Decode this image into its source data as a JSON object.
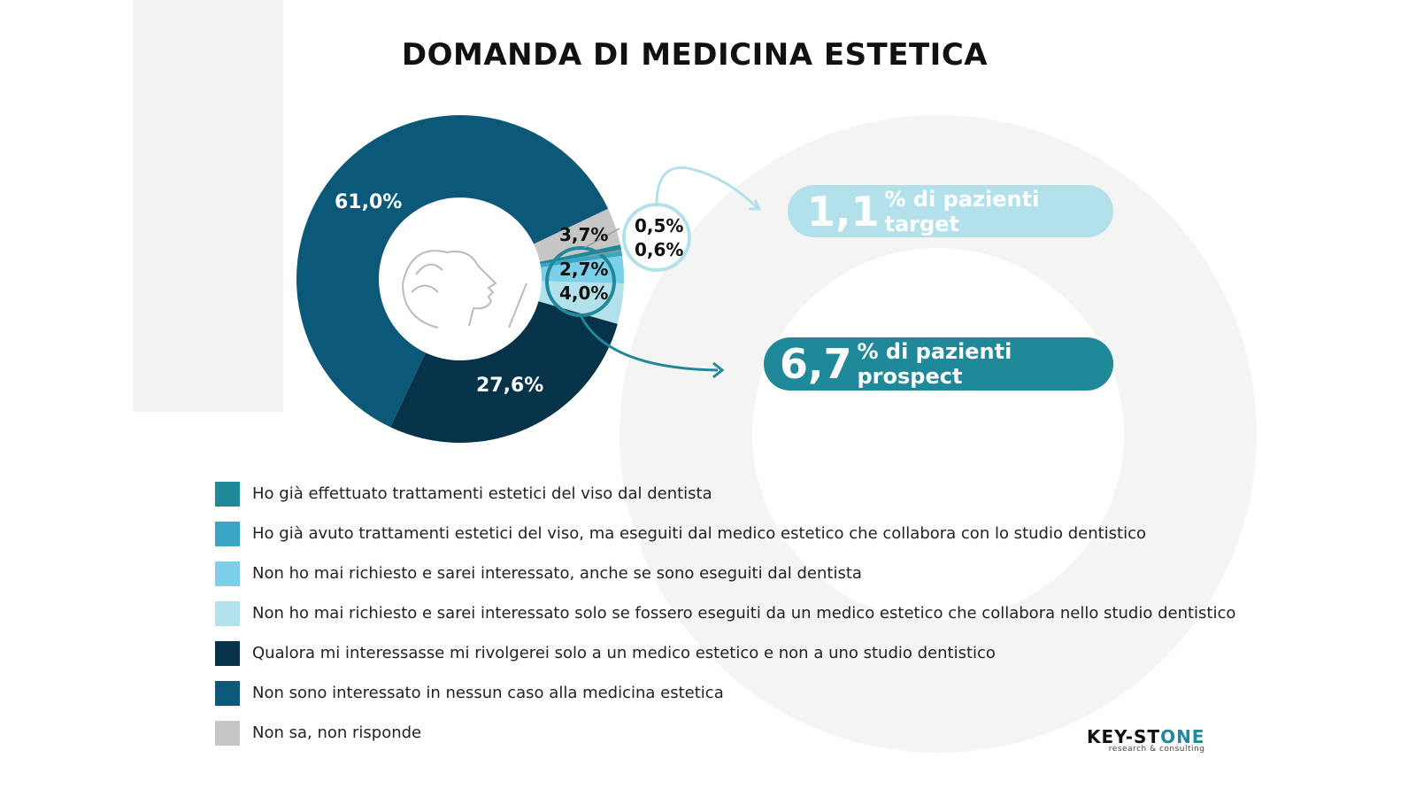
{
  "chart_data": {
    "type": "pie",
    "title": "DOMANDA DI MEDICINA ESTETICA",
    "slices": [
      {
        "label": "Non sa, non risponde",
        "value": 3.7,
        "display": "3,7%",
        "color": "#c6c6c6"
      },
      {
        "label": "Ho già effettuato trattamenti estetici del viso dal dentista",
        "value": 0.5,
        "display": "0,5%",
        "color": "#1f8899"
      },
      {
        "label": "Ho già avuto trattamenti estetici del viso, ma eseguiti dal medico estetico che collabora con lo studio dentistico",
        "value": 0.6,
        "display": "0,6%",
        "color": "#3aa6c6"
      },
      {
        "label": "Non ho mai richiesto e sarei interessato, anche se sono eseguiti dal dentista",
        "value": 2.7,
        "display": "2,7%",
        "color": "#7ccfe9"
      },
      {
        "label": "Non ho mai richiesto e sarei interessato solo se fossero eseguiti da un medico estetico che collabora nello studio dentistico",
        "value": 4.0,
        "display": "4,0%",
        "color": "#b3e1eb"
      },
      {
        "label": "Qualora mi interessasse mi rivolgerei solo a un medico estetico e non a uno studio dentistico",
        "value": 27.6,
        "display": "27,6%",
        "color": "#06334a"
      },
      {
        "label": "Non sono interessato in nessun caso alla medicina estetica",
        "value": 61.0,
        "display": "61,0%",
        "color": "#0b5878"
      }
    ],
    "legend_order": [
      1,
      2,
      3,
      4,
      5,
      6,
      0
    ],
    "donut": true
  },
  "callouts": {
    "target": {
      "value": "1,1",
      "text": "% di pazienti target",
      "color": "#b3e1eb"
    },
    "prospect": {
      "value": "6,7",
      "text": "% di pazienti prospect",
      "color": "#1f8899"
    }
  },
  "logo": {
    "name": "KEY-STONE",
    "tagline": "research & consulting"
  }
}
